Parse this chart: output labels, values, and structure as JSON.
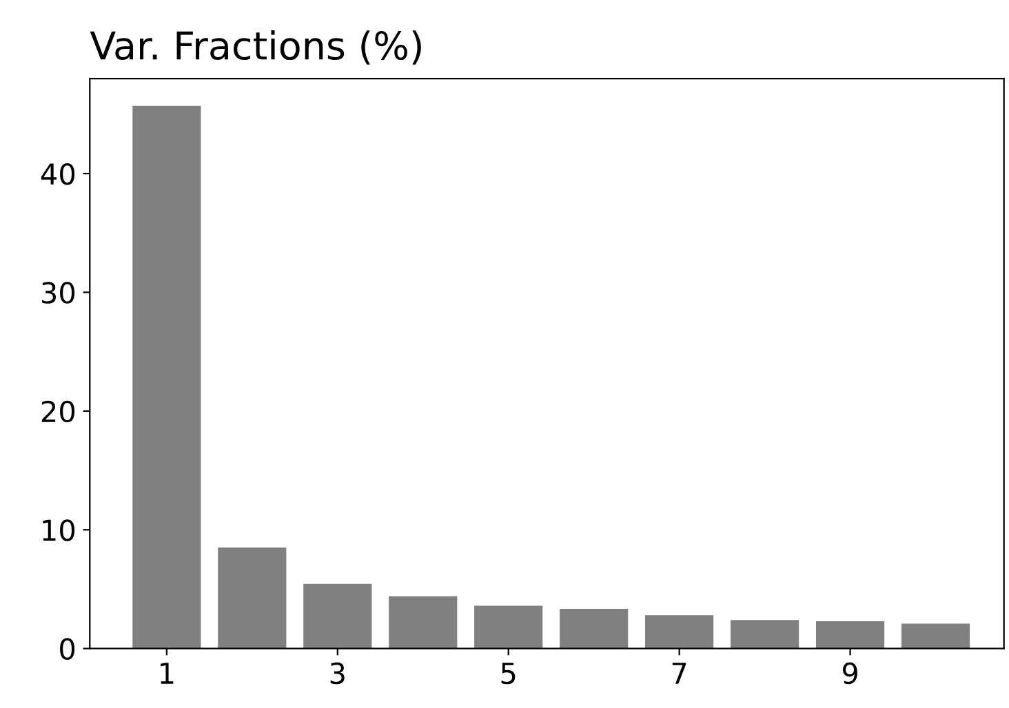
{
  "chart_data": {
    "type": "bar",
    "title": "Var. Fractions (%)",
    "x": [
      1,
      2,
      3,
      4,
      5,
      6,
      7,
      8,
      9,
      10
    ],
    "values": [
      45.7,
      8.5,
      5.45,
      4.4,
      3.6,
      3.35,
      2.8,
      2.4,
      2.3,
      2.1
    ],
    "color": "#808080",
    "xlim": [
      0.1,
      10.8
    ],
    "xticks": [
      1,
      3,
      5,
      7,
      9
    ],
    "ylim": [
      0,
      48
    ],
    "yticks": [
      0,
      10,
      20,
      30,
      40
    ],
    "grid": false
  }
}
